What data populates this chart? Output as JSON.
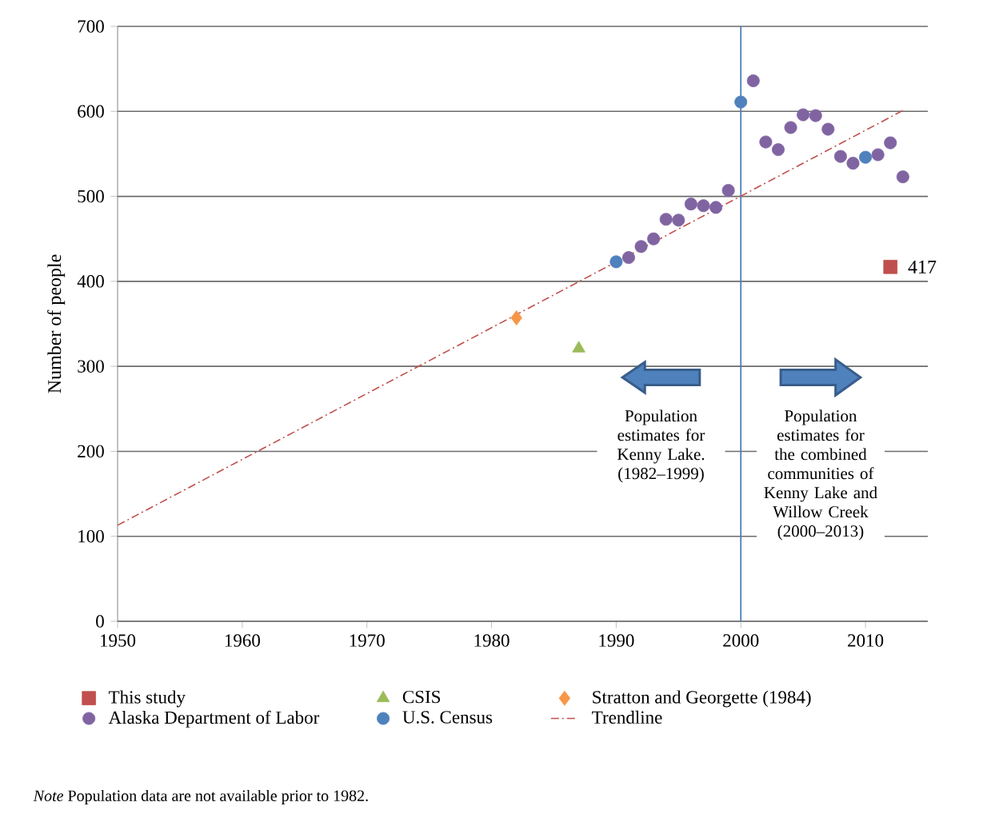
{
  "chart_data": {
    "type": "scatter",
    "ylabel": "Number of people",
    "xlim": [
      1950,
      2015
    ],
    "xticks": [
      1950,
      1960,
      1970,
      1980,
      1990,
      2000,
      2010
    ],
    "ylim": [
      0,
      700
    ],
    "yticks": [
      0,
      100,
      200,
      300,
      400,
      500,
      600,
      700
    ],
    "grid": "y",
    "legend": "bottom",
    "series": [
      {
        "name": "This study",
        "color": "#c0504d",
        "marker": "square",
        "x": [
          2012
        ],
        "values": [
          417
        ],
        "value_labels": [
          "417"
        ]
      },
      {
        "name": "CSIS",
        "color": "#9bbb59",
        "marker": "triangle",
        "x": [
          1987
        ],
        "values": [
          321
        ]
      },
      {
        "name": "Stratton and Georgette (1984)",
        "color": "#f79646",
        "marker": "diamond",
        "x": [
          1982
        ],
        "values": [
          357
        ]
      },
      {
        "name": "Alaska Department of Labor",
        "color": "#8064a2",
        "marker": "circle",
        "x": [
          1991,
          1992,
          1993,
          1994,
          1995,
          1996,
          1997,
          1998,
          1999,
          2001,
          2002,
          2003,
          2004,
          2005,
          2006,
          2007,
          2008,
          2009,
          2011,
          2012,
          2013
        ],
        "values": [
          428,
          441,
          450,
          473,
          472,
          491,
          489,
          487,
          507,
          636,
          564,
          555,
          581,
          596,
          595,
          579,
          547,
          539,
          549,
          563,
          523
        ]
      },
      {
        "name": "U.S. Census",
        "color": "#4f81bd",
        "marker": "circle",
        "x": [
          1990,
          2000,
          2010
        ],
        "values": [
          423,
          611,
          546
        ]
      },
      {
        "name": "Trendline",
        "type": "line",
        "color": "#c0504d",
        "line_style": "dashdot",
        "marker": "none",
        "x": [
          1950,
          2013
        ],
        "values": [
          113,
          601
        ]
      }
    ],
    "ref_lines": [
      {
        "axis": "x",
        "value": 2000,
        "color": "#4a7ebb"
      }
    ],
    "annotations": [
      "Population estimates for Kenny Lake. (1982–1999)",
      "Population estimates for the combined communities of Kenny Lake and Willow Creek (2000–2013)",
      "*Note* Population data are not available prior to 1982."
    ]
  }
}
